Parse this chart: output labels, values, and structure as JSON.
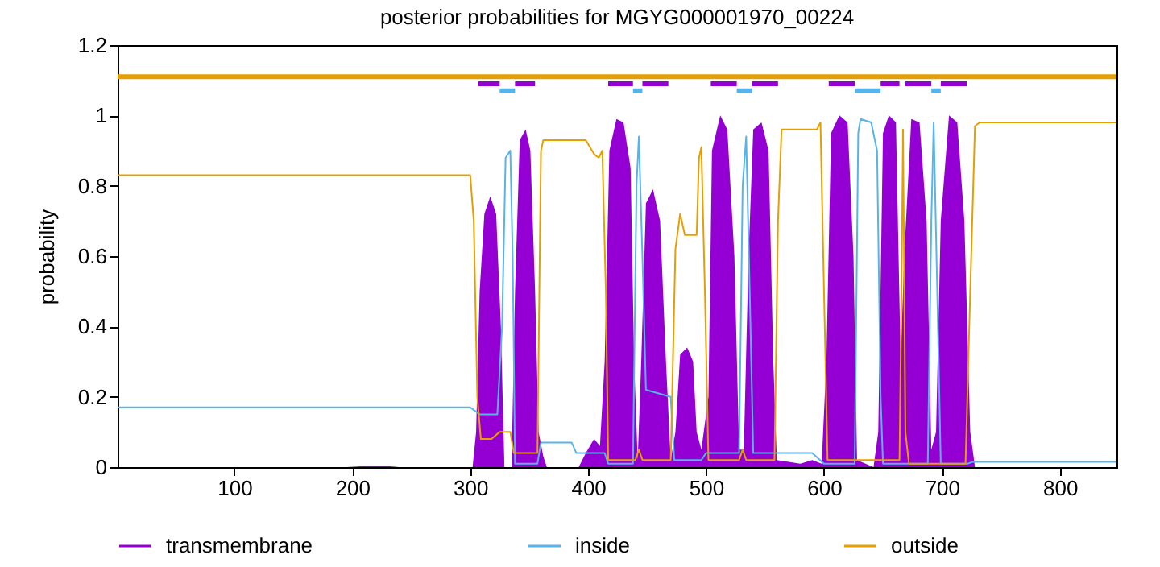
{
  "chart_data": {
    "type": "line",
    "title": "posterior probabilities for MGYG000001970_00224",
    "ylabel": "probability",
    "xlim": [
      1,
      848
    ],
    "xticks": [
      100,
      200,
      300,
      400,
      500,
      600,
      700,
      800
    ],
    "ylim": [
      0,
      1.2
    ],
    "yticks": [
      0,
      0.2,
      0.4,
      0.6,
      0.8,
      1,
      1.2
    ],
    "line_style": "solid",
    "grid": false,
    "legend": "bottom",
    "series": [
      {
        "name": "transmembrane",
        "type": "area",
        "color": "#9400d3",
        "x": [
          1,
          195,
          210,
          230,
          240,
          302,
          305,
          308,
          312,
          317,
          322,
          326,
          329,
          335,
          338,
          342,
          347,
          351,
          355,
          358,
          362,
          365,
          392,
          398,
          405,
          410,
          414,
          418,
          424,
          430,
          436,
          439,
          442,
          445,
          449,
          455,
          461,
          466,
          470,
          474,
          478,
          484,
          489,
          492,
          496,
          502,
          505,
          512,
          518,
          524,
          528,
          532,
          536,
          540,
          547,
          553,
          557,
          560,
          580,
          590,
          598,
          602,
          606,
          613,
          620,
          625,
          628,
          642,
          646,
          650,
          655,
          661,
          665,
          668,
          674,
          681,
          687,
          691,
          695,
          699,
          706,
          713,
          719,
          724,
          728,
          848
        ],
        "values": [
          0,
          0,
          0.003,
          0.003,
          0,
          0,
          0.1,
          0.5,
          0.72,
          0.77,
          0.72,
          0.4,
          0,
          0,
          0.5,
          0.93,
          0.96,
          0.9,
          0.5,
          0.1,
          0.03,
          0,
          0,
          0.04,
          0.08,
          0.06,
          0.3,
          0.9,
          0.99,
          0.98,
          0.85,
          0.3,
          0.02,
          0.3,
          0.75,
          0.79,
          0.7,
          0.3,
          0.02,
          0.1,
          0.32,
          0.34,
          0.3,
          0.1,
          0.05,
          0.2,
          0.9,
          1.0,
          0.96,
          0.6,
          0.05,
          0.05,
          0.6,
          0.96,
          0.98,
          0.9,
          0.3,
          0.02,
          0.01,
          0.02,
          0.01,
          0.3,
          0.95,
          1.0,
          0.98,
          0.6,
          0.02,
          0,
          0.1,
          0.95,
          1.0,
          0.98,
          0.3,
          0.6,
          0.99,
          0.98,
          0.7,
          0.05,
          0.1,
          0.7,
          1.0,
          0.98,
          0.7,
          0.1,
          0,
          0
        ]
      },
      {
        "name": "inside",
        "color": "#56b4e9",
        "x": [
          1,
          300,
          304,
          308,
          323,
          327,
          330,
          334,
          336,
          338,
          357,
          360,
          386,
          390,
          414,
          417,
          438,
          441,
          443,
          446,
          449,
          470,
          473,
          496,
          500,
          528,
          531,
          534,
          537,
          540,
          590,
          600,
          626,
          629,
          631,
          640,
          645,
          648,
          650,
          688,
          691,
          693,
          696,
          699,
          722,
          726,
          848
        ],
        "values": [
          0.17,
          0.17,
          0.16,
          0.15,
          0.15,
          0.4,
          0.88,
          0.9,
          0.6,
          0.01,
          0.01,
          0.07,
          0.07,
          0.04,
          0.04,
          0.01,
          0.01,
          0.8,
          0.94,
          0.6,
          0.22,
          0.2,
          0.02,
          0.02,
          0.04,
          0.04,
          0.8,
          0.94,
          0.5,
          0.04,
          0.04,
          0.01,
          0.01,
          0.95,
          0.99,
          0.98,
          0.9,
          0.2,
          0.01,
          0.01,
          0.7,
          0.98,
          0.5,
          0.01,
          0.01,
          0.015,
          0.015
        ]
      },
      {
        "name": "outside",
        "color": "#e69f00",
        "x": [
          1,
          300,
          303,
          306,
          309,
          318,
          325,
          334,
          337,
          357,
          360,
          362,
          398,
          405,
          409,
          412,
          415,
          417,
          440,
          443,
          446,
          470,
          474,
          478,
          482,
          492,
          494,
          496,
          499,
          502,
          528,
          531,
          534,
          558,
          561,
          564,
          594,
          597,
          600,
          603,
          664,
          666,
          667,
          669,
          672,
          720,
          724,
          728,
          732,
          848
        ],
        "values": [
          0.83,
          0.83,
          0.7,
          0.2,
          0.08,
          0.08,
          0.1,
          0.1,
          0.04,
          0.04,
          0.9,
          0.93,
          0.93,
          0.89,
          0.88,
          0.9,
          0.5,
          0.02,
          0.02,
          0.05,
          0.02,
          0.02,
          0.62,
          0.72,
          0.66,
          0.66,
          0.88,
          0.91,
          0.5,
          0.02,
          0.02,
          0.05,
          0.02,
          0.02,
          0.7,
          0.96,
          0.96,
          0.98,
          0.5,
          0.02,
          0.02,
          0.6,
          0.96,
          0.1,
          0.01,
          0.01,
          0.5,
          0.97,
          0.98,
          0.98
        ]
      },
      {
        "color": "#e69f00",
        "x": [
          1,
          848
        ],
        "values": [
          1.11,
          1.11
        ]
      },
      {
        "color": "#56b4e9",
        "x": [
          325,
          338,
          342,
          438,
          446,
          450,
          526,
          539,
          545,
          626,
          648,
          652,
          691,
          699
        ],
        "values": [
          1.07,
          1.07,
          null,
          1.07,
          1.07,
          null,
          1.07,
          1.07,
          null,
          1.07,
          1.07,
          null,
          1.07,
          1.07
        ]
      },
      {
        "color": "#9400d3",
        "x": [
          307,
          325,
          331,
          338,
          355,
          385,
          417,
          438,
          442,
          446,
          468,
          485,
          504,
          526,
          532,
          539,
          561,
          580,
          604,
          626,
          637,
          648,
          664,
          666,
          669,
          691,
          695,
          699,
          721
        ],
        "values": [
          1.09,
          1.09,
          null,
          1.09,
          1.09,
          null,
          1.09,
          1.09,
          null,
          1.09,
          1.09,
          null,
          1.09,
          1.09,
          null,
          1.09,
          1.09,
          null,
          1.09,
          1.09,
          null,
          1.09,
          1.09,
          null,
          1.09,
          1.09,
          null,
          1.09,
          1.09
        ]
      }
    ]
  }
}
